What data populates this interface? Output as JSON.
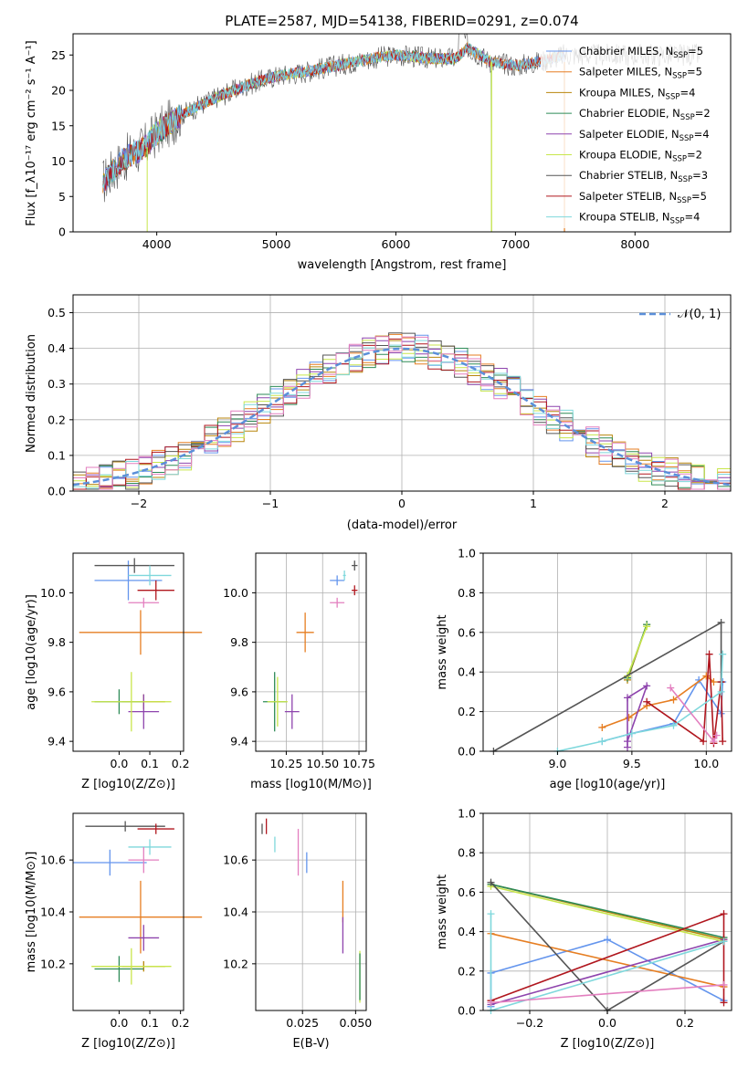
{
  "colors": {
    "chabrier_miles": "#6495ed",
    "salpeter_miles": "#e67e22",
    "kroupa_miles": "#b8860b",
    "chabrier_elodie": "#2e8b57",
    "salpeter_elodie": "#8e44ad",
    "kroupa_elodie": "#c8e64b",
    "chabrier_stelib": "#555555",
    "salpeter_stelib": "#b0161e",
    "kroupa_stelib": "#7fd8dc",
    "model_line": "#5b8fd9",
    "grid": "#b0b0b0"
  },
  "chart_data": [
    {
      "id": "spectrum",
      "type": "line",
      "title": "PLATE=2587, MJD=54138, FIBERID=0291, z=0.074",
      "xlabel": "wavelength [Angstrom, rest frame]",
      "ylabel": "Flux [f_λ10⁻¹⁷ erg cm⁻² s⁻¹ A⁻¹]",
      "xlim": [
        3300,
        8800
      ],
      "ylim": [
        0,
        28
      ],
      "xticks": [
        4000,
        5000,
        6000,
        7000,
        8000
      ],
      "yticks": [
        0,
        5,
        10,
        15,
        20,
        25
      ],
      "grid": false,
      "legend_position": "upper right",
      "legend": [
        {
          "label": "Chabrier MILES, N_SSP=5",
          "color_key": "chabrier_miles"
        },
        {
          "label": "Salpeter MILES, N_SSP=5",
          "color_key": "salpeter_miles"
        },
        {
          "label": "Kroupa MILES, N_SSP=4",
          "color_key": "kroupa_miles"
        },
        {
          "label": "Chabrier ELODIE, N_SSP=2",
          "color_key": "chabrier_elodie"
        },
        {
          "label": "Salpeter ELODIE, N_SSP=4",
          "color_key": "salpeter_elodie"
        },
        {
          "label": "Kroupa ELODIE, N_SSP=2",
          "color_key": "kroupa_elodie"
        },
        {
          "label": "Chabrier STELIB, N_SSP=3",
          "color_key": "chabrier_stelib"
        },
        {
          "label": "Salpeter STELIB, N_SSP=5",
          "color_key": "salpeter_stelib"
        },
        {
          "label": "Kroupa STELIB, N_SSP=4",
          "color_key": "kroupa_stelib"
        }
      ],
      "continuum": {
        "x": [
          3550,
          3700,
          3900,
          4000,
          4200,
          4500,
          4800,
          5000,
          5200,
          5500,
          5800,
          6000,
          6300,
          6500,
          6600,
          6800,
          7000,
          7200,
          7400
        ],
        "y": [
          7,
          10,
          12,
          14,
          16.5,
          19,
          21,
          22,
          22.5,
          23.5,
          24.5,
          25,
          24.5,
          24.5,
          26,
          24,
          23.5,
          24,
          25
        ]
      },
      "features": [
        {
          "x": 6563,
          "y": 28,
          "note": "observed spike"
        },
        {
          "x": 6800,
          "y": 0,
          "note": "STELIB drop"
        },
        {
          "x": 3920,
          "y": 0,
          "note": "ELODIE drop"
        },
        {
          "x": 7400,
          "y": 0,
          "note": "MILES drop"
        }
      ]
    },
    {
      "id": "residuals",
      "type": "line",
      "xlabel": "(data-model)/error",
      "ylabel": "Normed distribution",
      "xlim": [
        -2.5,
        2.5
      ],
      "ylim": [
        0,
        0.55
      ],
      "xticks": [
        -2,
        -1,
        0,
        1,
        2
      ],
      "xticklabels": [
        "−2",
        "−1",
        "0",
        "1",
        "2"
      ],
      "yticks": [
        0.0,
        0.1,
        0.2,
        0.3,
        0.4,
        0.5
      ],
      "yticklabels": [
        "0.0",
        "0.1",
        "0.2",
        "0.3",
        "0.4",
        "0.5"
      ],
      "grid": true,
      "legend_position": "upper right",
      "legend": [
        {
          "label": "𝒩(0, 1)",
          "color_key": "model_line",
          "style": "dashed"
        }
      ],
      "bin_width": 0.1
    },
    {
      "id": "age_vs_Z",
      "type": "scatter",
      "xlabel": "Z [log10(Z/Z⊙)]",
      "ylabel": "age  [log10(age/yr)]",
      "xlim": [
        -0.15,
        0.21
      ],
      "ylim": [
        9.36,
        10.16
      ],
      "xticks": [
        0.0,
        0.1,
        0.2
      ],
      "xticklabels": [
        "0.0",
        "0.1",
        "0.2"
      ],
      "yticks": [
        9.4,
        9.6,
        9.8,
        10.0
      ],
      "yticklabels": [
        "9.4",
        "9.6",
        "9.8",
        "10.0"
      ],
      "grid": false,
      "points": [
        {
          "key": "chabrier_miles",
          "x": 0.03,
          "xerr": 0.11,
          "y": 10.05,
          "yerr": 0.08
        },
        {
          "key": "salpeter_miles",
          "x": 0.07,
          "xerr": 0.2,
          "y": 9.84,
          "yerr": 0.09
        },
        {
          "key": "kroupa_miles",
          "x": 0.08,
          "xerr": 0.07,
          "y": 9.56,
          "yerr": 0.03
        },
        {
          "key": "chabrier_elodie",
          "x": 0.0,
          "xerr": 0.08,
          "y": 9.56,
          "yerr": 0.05
        },
        {
          "key": "salpeter_elodie",
          "x": 0.08,
          "xerr": 0.05,
          "y": 9.52,
          "yerr": 0.07
        },
        {
          "key": "kroupa_elodie",
          "x": 0.04,
          "xerr": 0.13,
          "y": 9.56,
          "yerr": 0.12
        },
        {
          "key": "chabrier_stelib",
          "x": 0.05,
          "xerr": 0.13,
          "y": 10.11,
          "yerr": 0.03
        },
        {
          "key": "salpeter_stelib",
          "x": 0.12,
          "xerr": 0.06,
          "y": 10.01,
          "yerr": 0.04
        },
        {
          "key": "kroupa_stelib",
          "x": 0.1,
          "xerr": 0.07,
          "y": 10.07,
          "yerr": 0.04
        },
        {
          "key": "kroupa_miles_b",
          "x": 0.08,
          "xerr": 0.05,
          "y": 9.96,
          "yerr": 0.02
        }
      ]
    },
    {
      "id": "age_vs_mass",
      "type": "scatter",
      "xlabel": "mass [log10(M/M⊙)]",
      "ylabel": "",
      "xlim": [
        10.04,
        10.8
      ],
      "ylim": [
        9.36,
        10.16
      ],
      "xticks": [
        10.25,
        10.5,
        10.75
      ],
      "xticklabels": [
        "10.25",
        "10.50",
        "10.75"
      ],
      "yticks": [
        9.4,
        9.6,
        9.8,
        10.0
      ],
      "yticklabels": [
        "9.4",
        "9.6",
        "9.8",
        "10.0"
      ],
      "grid": true,
      "points": [
        {
          "key": "chabrier_miles",
          "x": 10.6,
          "xerr": 0.05,
          "y": 10.05,
          "yerr": 0.02
        },
        {
          "key": "salpeter_miles",
          "x": 10.38,
          "xerr": 0.06,
          "y": 9.84,
          "yerr": 0.08
        },
        {
          "key": "chabrier_elodie",
          "x": 10.17,
          "xerr": 0.08,
          "y": 9.56,
          "yerr": 0.12
        },
        {
          "key": "kroupa_elodie",
          "x": 10.19,
          "xerr": 0.07,
          "y": 9.56,
          "yerr": 0.1
        },
        {
          "key": "salpeter_elodie",
          "x": 10.29,
          "xerr": 0.05,
          "y": 9.52,
          "yerr": 0.07
        },
        {
          "key": "chabrier_stelib",
          "x": 10.72,
          "xerr": 0.02,
          "y": 10.11,
          "yerr": 0.02
        },
        {
          "key": "salpeter_stelib",
          "x": 10.72,
          "xerr": 0.02,
          "y": 10.01,
          "yerr": 0.02
        },
        {
          "key": "kroupa_stelib",
          "x": 10.65,
          "xerr": 0.01,
          "y": 10.07,
          "yerr": 0.02
        },
        {
          "key": "kroupa_miles_b",
          "x": 10.6,
          "xerr": 0.05,
          "y": 9.96,
          "yerr": 0.02
        }
      ]
    },
    {
      "id": "weight_vs_age",
      "type": "line",
      "xlabel": "age  [log10(age/yr)]",
      "ylabel": "mass weight",
      "xlim": [
        8.5,
        10.17
      ],
      "ylim": [
        0,
        1
      ],
      "xticks": [
        9.0,
        9.5,
        10.0
      ],
      "xticklabels": [
        "9.0",
        "9.5",
        "10.0"
      ],
      "yticks": [
        0.0,
        0.2,
        0.4,
        0.6,
        0.8,
        1.0
      ],
      "yticklabels": [
        "0.0",
        "0.2",
        "0.4",
        "0.6",
        "0.8",
        "1.0"
      ],
      "grid": true,
      "series": [
        {
          "key": "chabrier_miles",
          "x": [
            9.3,
            9.5,
            9.78,
            9.95,
            10.1,
            10.11
          ],
          "y": [
            0.05,
            0.09,
            0.14,
            0.36,
            0.19,
            0.35
          ]
        },
        {
          "key": "salpeter_miles",
          "x": [
            9.3,
            9.48,
            9.6,
            9.78,
            10.0,
            10.05
          ],
          "y": [
            0.12,
            0.17,
            0.23,
            0.26,
            0.38,
            0.35
          ]
        },
        {
          "key": "kroupa_miles",
          "x": [
            9.47,
            9.6
          ],
          "y": [
            0.36,
            0.64
          ]
        },
        {
          "key": "chabrier_elodie",
          "x": [
            9.47,
            9.6
          ],
          "y": [
            0.37,
            0.64
          ]
        },
        {
          "key": "salpeter_elodie",
          "x": [
            9.47,
            9.47,
            9.6,
            9.47
          ],
          "y": [
            0.02,
            0.27,
            0.33,
            0.05
          ]
        },
        {
          "key": "kroupa_elodie",
          "x": [
            9.47,
            9.6
          ],
          "y": [
            0.38,
            0.63
          ]
        },
        {
          "key": "chabrier_stelib",
          "x": [
            8.57,
            10.1,
            10.1
          ],
          "y": [
            0.0,
            0.65,
            0.35
          ]
        },
        {
          "key": "salpeter_stelib",
          "x": [
            9.6,
            9.98,
            10.02,
            10.05,
            10.1,
            10.11
          ],
          "y": [
            0.25,
            0.05,
            0.49,
            0.04,
            0.35,
            0.05
          ]
        },
        {
          "key": "kroupa_stelib",
          "x": [
            9.0,
            9.3,
            9.5,
            9.78,
            10.1,
            10.11
          ],
          "y": [
            0.0,
            0.05,
            0.09,
            0.13,
            0.3,
            0.49
          ]
        },
        {
          "key": "kroupa_miles_b",
          "x": [
            9.76,
            10.05,
            10.07
          ],
          "y": [
            0.32,
            0.05,
            0.08
          ]
        }
      ]
    },
    {
      "id": "mass_vs_Z",
      "type": "scatter",
      "xlabel": "Z [log10(Z/Z⊙)]",
      "ylabel": "mass [log10(M/M⊙)]",
      "xlim": [
        -0.15,
        0.21
      ],
      "ylim": [
        10.02,
        10.78
      ],
      "xticks": [
        0.0,
        0.1,
        0.2
      ],
      "xticklabels": [
        "0.0",
        "0.1",
        "0.2"
      ],
      "yticks": [
        10.2,
        10.4,
        10.6
      ],
      "yticklabels": [
        "10.2",
        "10.4",
        "10.6"
      ],
      "grid": false,
      "points": [
        {
          "key": "chabrier_miles",
          "x": -0.03,
          "xerr": 0.12,
          "y": 10.59,
          "yerr": 0.05
        },
        {
          "key": "salpeter_miles",
          "x": 0.07,
          "xerr": 0.2,
          "y": 10.38,
          "yerr": 0.14
        },
        {
          "key": "kroupa_miles",
          "x": 0.08,
          "xerr": 0.07,
          "y": 10.19,
          "yerr": 0.02
        },
        {
          "key": "chabrier_elodie",
          "x": 0.0,
          "xerr": 0.08,
          "y": 10.18,
          "yerr": 0.05
        },
        {
          "key": "salpeter_elodie",
          "x": 0.08,
          "xerr": 0.05,
          "y": 10.3,
          "yerr": 0.05
        },
        {
          "key": "kroupa_elodie",
          "x": 0.04,
          "xerr": 0.13,
          "y": 10.19,
          "yerr": 0.07
        },
        {
          "key": "chabrier_stelib",
          "x": 0.02,
          "xerr": 0.13,
          "y": 10.73,
          "yerr": 0.02
        },
        {
          "key": "salpeter_stelib",
          "x": 0.12,
          "xerr": 0.06,
          "y": 10.72,
          "yerr": 0.02
        },
        {
          "key": "kroupa_stelib",
          "x": 0.1,
          "xerr": 0.07,
          "y": 10.65,
          "yerr": 0.03
        },
        {
          "key": "kroupa_miles_b",
          "x": 0.08,
          "xerr": 0.05,
          "y": 10.6,
          "yerr": 0.05
        }
      ]
    },
    {
      "id": "mass_vs_ebv",
      "type": "scatter",
      "xlabel": "E(B-V)",
      "ylabel": "",
      "xlim": [
        0.003,
        0.055
      ],
      "ylim": [
        10.02,
        10.78
      ],
      "xticks": [
        0.025,
        0.05
      ],
      "xticklabels": [
        "0.025",
        "0.050"
      ],
      "yticks": [
        10.2,
        10.4,
        10.6
      ],
      "yticklabels": [
        "10.2",
        "10.4",
        "10.6"
      ],
      "grid": true,
      "points": [
        {
          "key": "chabrier_miles",
          "x": 0.027,
          "y": 10.59,
          "yerr": 0.04
        },
        {
          "key": "salpeter_miles",
          "x": 0.044,
          "y": 10.44,
          "yerr": 0.08
        },
        {
          "key": "salpeter_elodie",
          "x": 0.044,
          "y": 10.31,
          "yerr": 0.07
        },
        {
          "key": "kroupa_elodie",
          "x": 0.052,
          "y": 10.15,
          "yerr": 0.1
        },
        {
          "key": "chabrier_elodie",
          "x": 0.052,
          "y": 10.15,
          "yerr": 0.09
        },
        {
          "key": "chabrier_stelib",
          "x": 0.006,
          "y": 10.72,
          "yerr": 0.02
        },
        {
          "key": "salpeter_stelib",
          "x": 0.008,
          "y": 10.73,
          "yerr": 0.03
        },
        {
          "key": "kroupa_stelib",
          "x": 0.012,
          "y": 10.66,
          "yerr": 0.03
        },
        {
          "key": "kroupa_miles_b",
          "x": 0.023,
          "y": 10.63,
          "yerr": 0.09
        }
      ]
    },
    {
      "id": "weight_vs_Z",
      "type": "line",
      "xlabel": "Z [log10(Z/Z⊙)]",
      "ylabel": "mass weight",
      "xlim": [
        -0.32,
        0.32
      ],
      "ylim": [
        0,
        1
      ],
      "xticks": [
        -0.2,
        0.0,
        0.2
      ],
      "xticklabels": [
        "−0.2",
        "0.0",
        "0.2"
      ],
      "yticks": [
        0.0,
        0.2,
        0.4,
        0.6,
        0.8,
        1.0
      ],
      "yticklabels": [
        "0.0",
        "0.2",
        "0.4",
        "0.6",
        "0.8",
        "1.0"
      ],
      "grid": true,
      "series": [
        {
          "key": "chabrier_miles",
          "x": [
            -0.3,
            -0.3,
            0.0,
            0.3
          ],
          "y": [
            0.02,
            0.19,
            0.36,
            0.05
          ]
        },
        {
          "key": "salpeter_miles",
          "x": [
            -0.3,
            0.3
          ],
          "y": [
            0.39,
            0.12
          ]
        },
        {
          "key": "kroupa_miles",
          "x": [
            -0.3,
            0.3
          ],
          "y": [
            0.64,
            0.36
          ]
        },
        {
          "key": "chabrier_elodie",
          "x": [
            -0.3,
            0.3
          ],
          "y": [
            0.64,
            0.37
          ]
        },
        {
          "key": "salpeter_elodie",
          "x": [
            -0.3,
            0.3
          ],
          "y": [
            0.03,
            0.36
          ]
        },
        {
          "key": "kroupa_elodie",
          "x": [
            -0.3,
            0.3
          ],
          "y": [
            0.63,
            0.35
          ]
        },
        {
          "key": "chabrier_stelib",
          "x": [
            -0.3,
            0.0,
            0.3
          ],
          "y": [
            0.65,
            0.0,
            0.35
          ]
        },
        {
          "key": "salpeter_stelib",
          "x": [
            -0.3,
            0.3,
            0.3
          ],
          "y": [
            0.05,
            0.49,
            0.04
          ]
        },
        {
          "key": "kroupa_stelib",
          "x": [
            -0.3,
            -0.3,
            0.3
          ],
          "y": [
            0.49,
            0.0,
            0.35
          ]
        },
        {
          "key": "kroupa_miles_b",
          "x": [
            -0.3,
            0.3
          ],
          "y": [
            0.04,
            0.13
          ]
        }
      ]
    }
  ]
}
